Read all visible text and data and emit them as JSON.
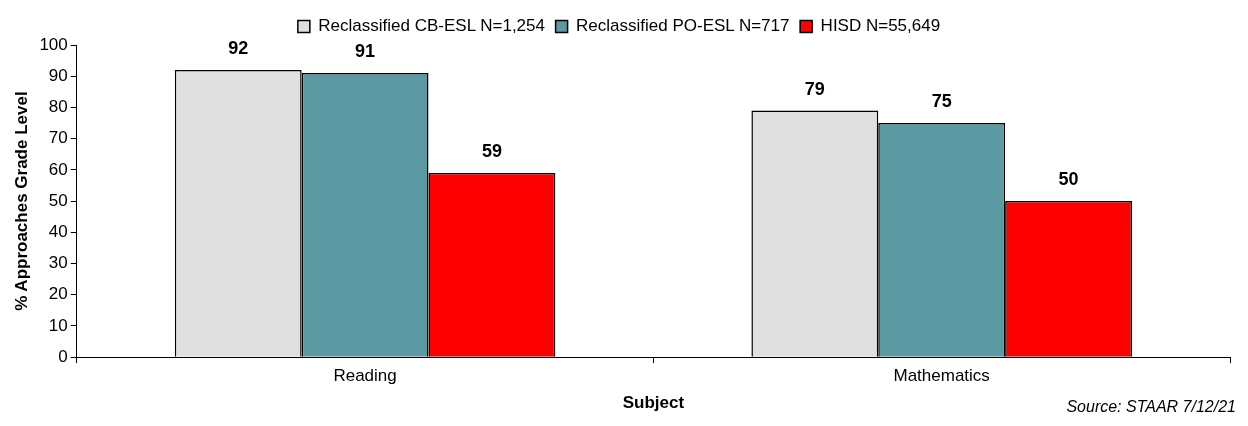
{
  "chart_data": {
    "type": "bar",
    "xlabel": "Subject",
    "ylabel": "% Approaches Grade Level",
    "categories": [
      "Reading",
      "Mathematics"
    ],
    "series": [
      {
        "name": "Reclassified CB-ESL N=1,254",
        "color": "#e0e0e0",
        "values": [
          92,
          79
        ]
      },
      {
        "name": "Reclassified PO-ESL N=717",
        "color": "#5b9aa3",
        "values": [
          91,
          75
        ]
      },
      {
        "name": "HISD N=55,649",
        "color": "#ff0000",
        "values": [
          59,
          50
        ]
      }
    ],
    "ylim": [
      0,
      100
    ],
    "yticks": [
      0,
      10,
      20,
      30,
      40,
      50,
      60,
      70,
      80,
      90,
      100
    ],
    "grid": false,
    "legend": "top",
    "data_labels": true,
    "annotations": [
      "Source: STAAR 7/12/21"
    ]
  }
}
